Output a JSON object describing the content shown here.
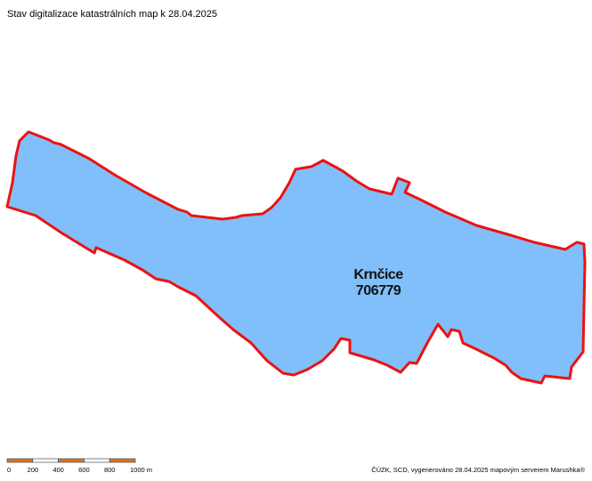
{
  "title": "Stav digitalizace katastrálních map k 28.04.2025",
  "area": {
    "name": "Krnčice",
    "code": "706779"
  },
  "scale_bar": {
    "labels": [
      "0",
      "200",
      "400",
      "600",
      "800",
      "1000 m"
    ]
  },
  "credit": "ČÚZK, SCD, vygenerováno 28.04.2025 mapovým serverem Marushka®"
}
